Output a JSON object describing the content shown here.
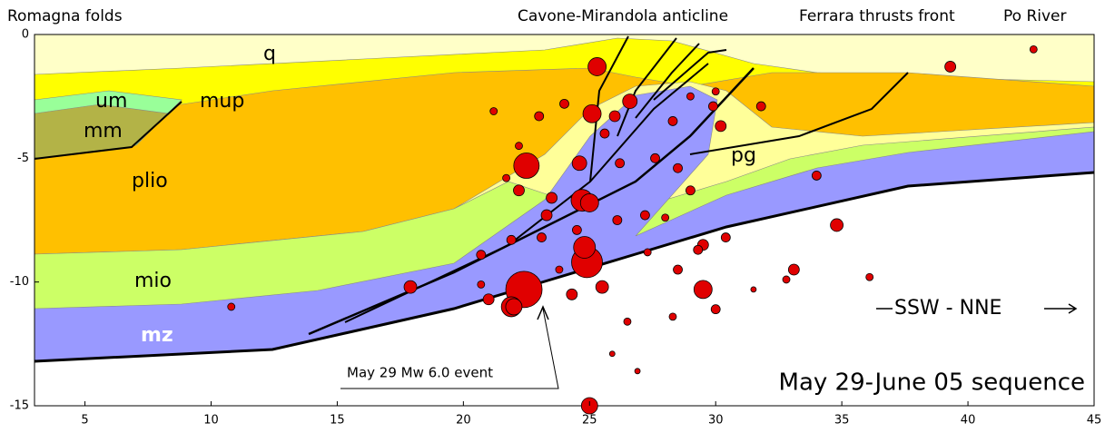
{
  "chart_data": {
    "type": "scatter",
    "annotations": [
      "Romagna folds",
      "Cavone-Mirandola anticline",
      "Ferrara thrusts front",
      "Po River"
    ],
    "layer_labels": [
      "q",
      "um",
      "mm",
      "mup",
      "plio",
      "mio",
      "mz",
      "pg"
    ],
    "callout": "May 29 Mw 6.0 event",
    "direction": "SSW - NNE",
    "label": "May 29-June 05 sequence",
    "color": "#e00000",
    "xlim": [
      3,
      45
    ],
    "xticks": [
      5,
      10,
      15,
      20,
      25,
      30,
      35,
      40,
      45
    ],
    "ylim": [
      -15,
      0
    ],
    "yticks": [
      0,
      -5,
      -10,
      -15
    ],
    "x": [
      22.4,
      21.9,
      22.0,
      24.9,
      24.8,
      24.7,
      25.0,
      25.1,
      25.3,
      26.6,
      24.6,
      22.5,
      25.0,
      29.5,
      34.8,
      39.3,
      42.6,
      33.1,
      34.0,
      30.2,
      29.9,
      31.8,
      21.0,
      17.9,
      10.8,
      23.0,
      21.2,
      24.0,
      25.5,
      24.3,
      23.3,
      22.2,
      23.5,
      26.2,
      27.6,
      28.5,
      29.0,
      29.5,
      28.5,
      30.0,
      28.3,
      26.5,
      25.9,
      26.9,
      29.3,
      30.4,
      27.2,
      26.1,
      23.1,
      21.9,
      20.7,
      36.1,
      32.8,
      31.5,
      25.6,
      26.0,
      29.0,
      30.0,
      28.3,
      22.2,
      21.7,
      20.7,
      23.8,
      24.5,
      27.3,
      28.0
    ],
    "y": [
      -10.3,
      -11.0,
      -11.0,
      -9.2,
      -8.6,
      -6.7,
      -6.8,
      -3.2,
      -1.3,
      -2.7,
      -5.2,
      -5.3,
      -15.0,
      -10.3,
      -7.7,
      -1.3,
      -0.6,
      -9.5,
      -5.7,
      -3.7,
      -2.9,
      -2.9,
      -10.7,
      -10.2,
      -11.0,
      -3.3,
      -3.1,
      -2.8,
      -10.2,
      -10.5,
      -7.3,
      -6.3,
      -6.6,
      -5.2,
      -5.0,
      -5.4,
      -6.3,
      -8.5,
      -9.5,
      -11.1,
      -11.4,
      -11.6,
      -12.9,
      -13.6,
      -8.7,
      -8.2,
      -7.3,
      -7.5,
      -8.2,
      -8.3,
      -8.9,
      -9.8,
      -9.9,
      -10.3,
      -4.0,
      -3.3,
      -2.5,
      -2.3,
      -3.5,
      -4.5,
      -5.8,
      -10.1,
      -9.5,
      -7.9,
      -8.8,
      -7.4
    ],
    "sizes": [
      20,
      11,
      9,
      17,
      12,
      12,
      10,
      10,
      10,
      8,
      8,
      14,
      9,
      10,
      7,
      6,
      4,
      6,
      5,
      6,
      5,
      5,
      6,
      7,
      4,
      5,
      4,
      5,
      7,
      6,
      6,
      6,
      6,
      5,
      5,
      5,
      5,
      6,
      5,
      5,
      4,
      4,
      3,
      3,
      5,
      5,
      5,
      5,
      5,
      5,
      5,
      4,
      4,
      3,
      5,
      6,
      4,
      4,
      5,
      4,
      4,
      4,
      4,
      5,
      4,
      4
    ]
  }
}
